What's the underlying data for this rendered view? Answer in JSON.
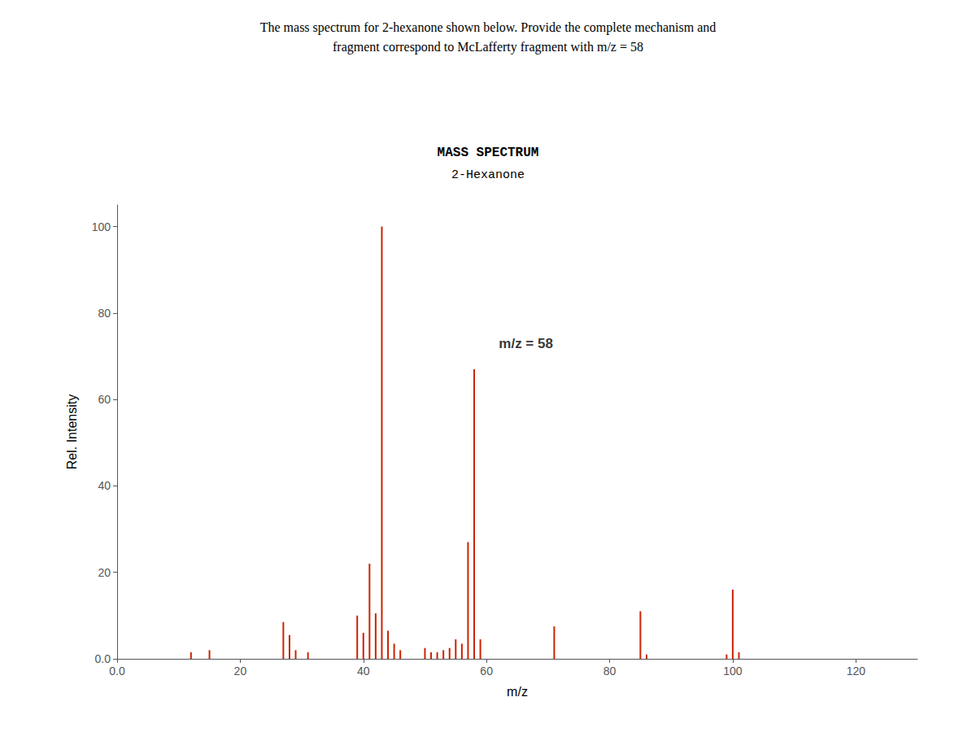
{
  "chart_data": {
    "type": "bar",
    "header": [
      "The mass spectrum for 2-hexanone shown below. Provide the complete mechanism and",
      "fragment correspond to McLafferty fragment with m/z = 58"
    ],
    "title": "MASS SPECTRUM",
    "subtitle": "2-Hexanone",
    "x_label": "m/z",
    "y_label": "Rel. Intensity",
    "x": [
      12,
      15,
      27,
      28,
      29,
      31,
      39,
      40,
      41,
      42,
      43,
      44,
      45,
      46,
      50,
      51,
      52,
      53,
      54,
      55,
      56,
      57,
      58,
      59,
      71,
      85,
      86,
      99,
      100,
      101
    ],
    "values": [
      1.5,
      2.0,
      8.5,
      5.5,
      2.0,
      1.5,
      10.0,
      6.0,
      22.0,
      10.5,
      100.0,
      6.5,
      3.5,
      2.0,
      2.5,
      1.5,
      1.5,
      2.0,
      2.5,
      4.5,
      3.5,
      27.0,
      67.0,
      4.5,
      7.5,
      11.0,
      1.0,
      1.0,
      16.0,
      1.5
    ],
    "color": "#cc2200",
    "xlim": [
      0,
      130
    ],
    "ylim": [
      0,
      105
    ],
    "xticks": [
      {
        "value": 0,
        "label": "0.0"
      },
      20,
      40,
      60,
      80,
      100,
      120
    ],
    "yticks": [
      {
        "value": 0,
        "label": "0.0"
      },
      20,
      40,
      60,
      80,
      100
    ],
    "annotations": [
      {
        "text": "m/z = 58",
        "x": 62,
        "y": 73
      }
    ],
    "grid": false
  }
}
